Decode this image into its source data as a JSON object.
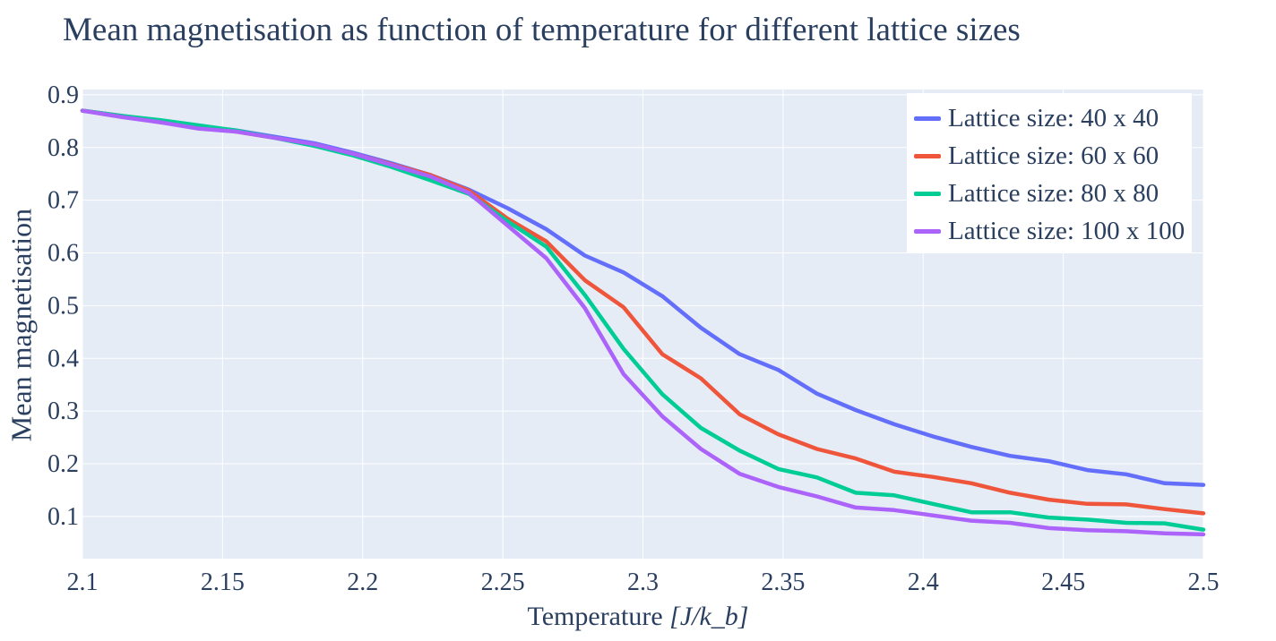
{
  "chart_data": {
    "type": "line",
    "title": "Mean magnetisation as function of temperature for different lattice sizes",
    "xlabel_text": "Temperature",
    "xlabel_unit": "[J/k_b]",
    "ylabel": "Mean magnetisation",
    "xlim": [
      2.1,
      2.5
    ],
    "ylim": [
      0.02,
      0.91
    ],
    "xticks": [
      2.1,
      2.15,
      2.2,
      2.25,
      2.3,
      2.35,
      2.4,
      2.45,
      2.5
    ],
    "xtick_labels": [
      "2.1",
      "2.15",
      "2.2",
      "2.25",
      "2.3",
      "2.35",
      "2.4",
      "2.45",
      "2.5"
    ],
    "yticks": [
      0.1,
      0.2,
      0.3,
      0.4,
      0.5,
      0.6,
      0.7,
      0.8,
      0.9
    ],
    "ytick_labels": [
      "0.1",
      "0.2",
      "0.3",
      "0.4",
      "0.5",
      "0.6",
      "0.7",
      "0.8",
      "0.9"
    ],
    "grid": true,
    "legend_position": "top-right",
    "plot_background": "#e5ecf6",
    "x": [
      2.1,
      2.1138,
      2.1276,
      2.1414,
      2.1552,
      2.169,
      2.1828,
      2.1966,
      2.2103,
      2.2241,
      2.2379,
      2.2517,
      2.2655,
      2.2793,
      2.2931,
      2.3069,
      2.3207,
      2.3345,
      2.3483,
      2.3621,
      2.3759,
      2.3897,
      2.4034,
      2.4172,
      2.431,
      2.4448,
      2.4586,
      2.4724,
      2.4862,
      2.5
    ],
    "series": [
      {
        "name": "Lattice size: 40 x 40",
        "color": "#636efa",
        "values": [
          0.87,
          0.86,
          0.85,
          0.84,
          0.832,
          0.82,
          0.808,
          0.79,
          0.77,
          0.748,
          0.72,
          0.685,
          0.645,
          0.595,
          0.563,
          0.518,
          0.458,
          0.408,
          0.378,
          0.333,
          0.302,
          0.275,
          0.252,
          0.232,
          0.215,
          0.205,
          0.188,
          0.18,
          0.163,
          0.16
        ]
      },
      {
        "name": "Lattice size: 60 x 60",
        "color": "#ef553b",
        "values": [
          0.87,
          0.86,
          0.848,
          0.84,
          0.83,
          0.818,
          0.805,
          0.788,
          0.768,
          0.748,
          0.718,
          0.665,
          0.622,
          0.548,
          0.497,
          0.408,
          0.362,
          0.294,
          0.256,
          0.228,
          0.21,
          0.185,
          0.175,
          0.163,
          0.145,
          0.132,
          0.124,
          0.123,
          0.114,
          0.106
        ]
      },
      {
        "name": "Lattice size: 80 x 80",
        "color": "#00cc96",
        "values": [
          0.87,
          0.86,
          0.852,
          0.842,
          0.832,
          0.818,
          0.803,
          0.785,
          0.763,
          0.738,
          0.712,
          0.66,
          0.612,
          0.52,
          0.418,
          0.332,
          0.268,
          0.225,
          0.19,
          0.174,
          0.145,
          0.14,
          0.124,
          0.108,
          0.108,
          0.098,
          0.094,
          0.088,
          0.087,
          0.075
        ]
      },
      {
        "name": "Lattice size: 100 x 100",
        "color": "#ab63fa",
        "values": [
          0.87,
          0.858,
          0.848,
          0.836,
          0.83,
          0.818,
          0.806,
          0.788,
          0.767,
          0.745,
          0.714,
          0.652,
          0.59,
          0.495,
          0.37,
          0.29,
          0.228,
          0.181,
          0.156,
          0.138,
          0.117,
          0.112,
          0.102,
          0.092,
          0.088,
          0.078,
          0.074,
          0.072,
          0.068,
          0.066
        ]
      }
    ]
  }
}
